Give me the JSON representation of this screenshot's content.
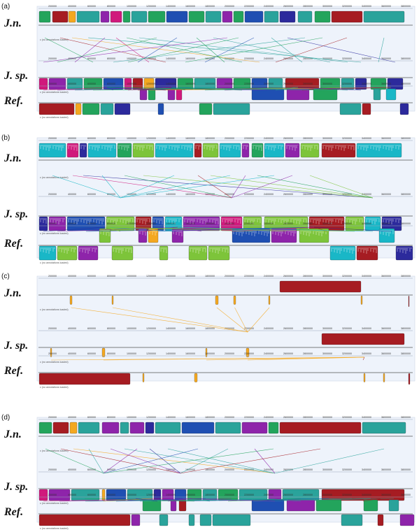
{
  "figure": {
    "panels": [
      {
        "letter": "(a)",
        "genomes": [
          "J.n.",
          "J. sp.",
          "Ref."
        ],
        "scale_labels": [
          "200000",
          "400000",
          "600000",
          "800000",
          "1000000",
          "1200000",
          "1400000",
          "1600000",
          "1800000",
          "2000000",
          "2200000",
          "2400000",
          "2600000",
          "2800000",
          "3000000",
          "3200000",
          "3400000",
          "3600000",
          "3800000"
        ],
        "no_annotation_note": "c (no annotations loaded)"
      },
      {
        "letter": "(b)",
        "genomes": [
          "J.n.",
          "J. sp.",
          "Ref."
        ],
        "scale_labels": [
          "200000",
          "400000",
          "600000",
          "800000",
          "1000000",
          "1200000",
          "1400000",
          "1600000",
          "1800000",
          "2000000",
          "2200000",
          "2400000",
          "2600000",
          "2800000",
          "3000000",
          "3200000",
          "3400000",
          "3600000",
          "3800000"
        ],
        "no_annotation_note": "c (no annotations loaded)"
      },
      {
        "letter": "(c)",
        "genomes": [
          "J.n.",
          "J. sp.",
          "Ref."
        ],
        "scale_labels": [
          "200000",
          "400000",
          "600000",
          "800000",
          "1000000",
          "1200000",
          "1400000",
          "1600000",
          "1800000",
          "2000000",
          "2200000",
          "2400000",
          "2600000",
          "2800000",
          "3000000",
          "3200000",
          "3400000",
          "3600000",
          "3800000"
        ],
        "no_annotation_note": "c (no annotations loaded)"
      },
      {
        "letter": "(d)",
        "genomes": [
          "J.n.",
          "J. sp.",
          "Ref."
        ],
        "scale_labels": [
          "200000",
          "400000",
          "600000",
          "800000",
          "1000000",
          "1200000",
          "1400000",
          "1600000",
          "1800000",
          "2000000",
          "2200000",
          "2400000",
          "2600000",
          "2800000",
          "3000000",
          "3200000",
          "3400000",
          "3600000",
          "3800000"
        ],
        "no_annotation_note": "c (no annotations loaded)"
      }
    ],
    "block_colors": {
      "red": "#a61c22",
      "green": "#23a45c",
      "teal": "#2aa39b",
      "purple": "#8e24aa",
      "blue": "#1f4fb2",
      "magenta": "#d0197c",
      "orange": "#f4a820",
      "lightgreen": "#7dc43a",
      "navy": "#2c2a9c",
      "cyan": "#19b7c7",
      "panel_bg": "#eef3fb"
    }
  }
}
